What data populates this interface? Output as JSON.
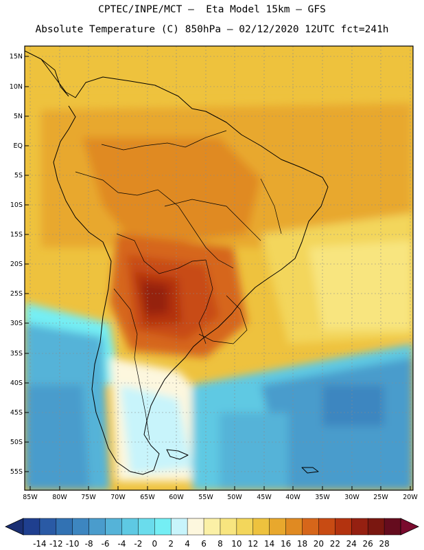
{
  "header": {
    "line1": "CPTEC/INPE/MCT –  Eta Model 15km – GFS",
    "line2": "Absolute Temperature (C) 850hPa – 02/12/2020 12UTC fct=241h"
  },
  "axes": {
    "lat_labels": [
      "15N",
      "10N",
      "5N",
      "EQ",
      "5S",
      "10S",
      "15S",
      "20S",
      "25S",
      "30S",
      "35S",
      "40S",
      "45S",
      "50S",
      "55S"
    ],
    "lon_labels": [
      "85W",
      "80W",
      "75W",
      "70W",
      "65W",
      "60W",
      "55W",
      "50W",
      "45W",
      "40W",
      "35W",
      "30W",
      "25W",
      "20W"
    ]
  },
  "colorbar": {
    "labels": [
      "-14",
      "-12",
      "-10",
      "-8",
      "-6",
      "-4",
      "-2",
      "0",
      "2",
      "4",
      "6",
      "8",
      "10",
      "12",
      "14",
      "16",
      "18",
      "20",
      "22",
      "24",
      "26",
      "28"
    ],
    "colors": [
      "#1f3f8f",
      "#2a5aa5",
      "#3272b3",
      "#3d86c0",
      "#4a9ccc",
      "#55b3d8",
      "#5ec9e3",
      "#6adcec",
      "#74eef4",
      "#c8f4fb",
      "#fdf7de",
      "#fbf0a6",
      "#f8e57f",
      "#f3d65b",
      "#eec23e",
      "#e8a82d",
      "#e08a22",
      "#d6661a",
      "#c84b13",
      "#b3330f",
      "#952011",
      "#7a1710",
      "#650c1e"
    ],
    "under_color": "#1a2f73",
    "over_color": "#7a0b2e"
  }
}
